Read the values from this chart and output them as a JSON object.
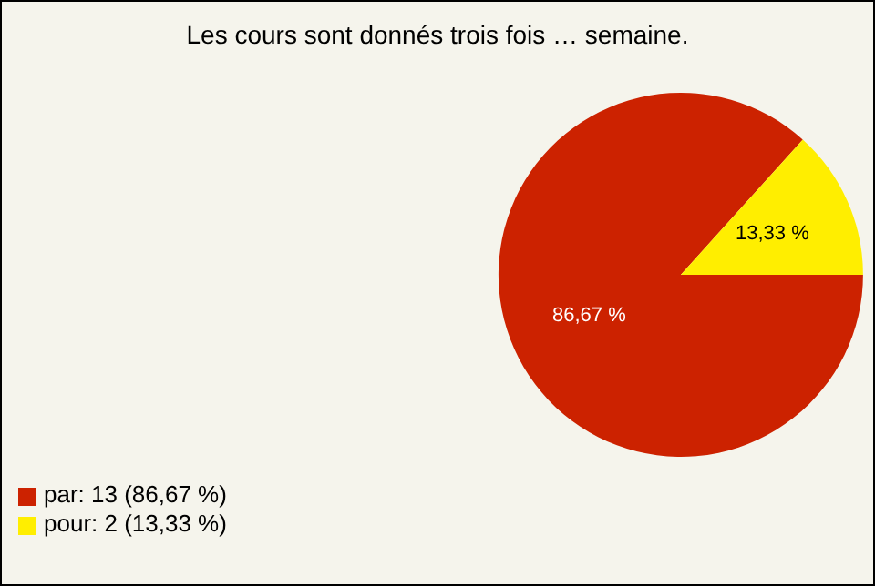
{
  "chart_data": {
    "type": "pie",
    "title": "Les cours sont donnés trois fois … semaine.",
    "categories": [
      "par: 13 (86,67 %)",
      "pour: 2 (13,33 %)"
    ],
    "values": [
      86.67,
      13.33
    ],
    "value_labels": [
      "86,67 %",
      "13,33 %"
    ],
    "colors": [
      "#cc2200",
      "#ffee00"
    ],
    "legend": "bottom left"
  }
}
